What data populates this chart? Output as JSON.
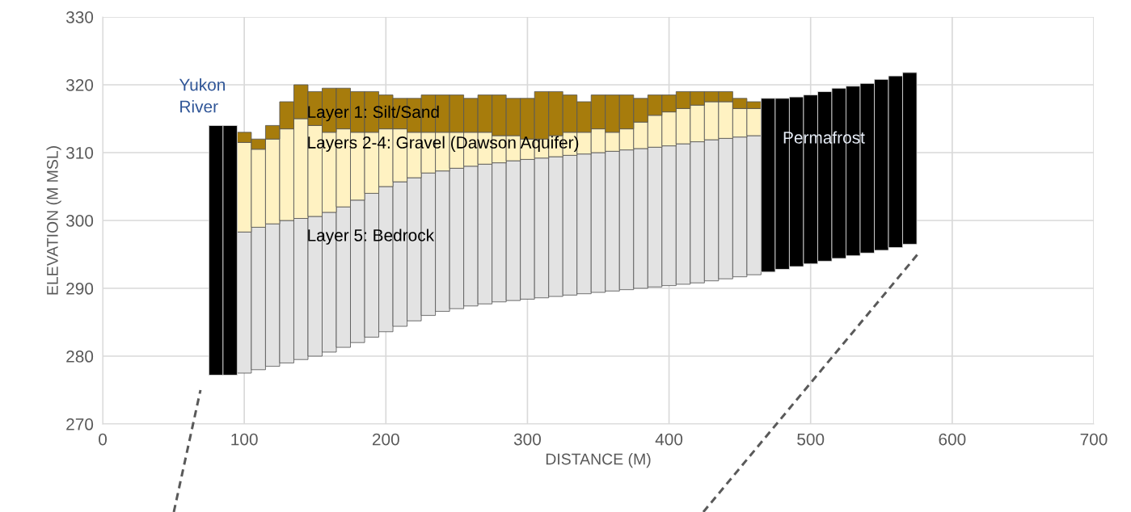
{
  "chart_data": {
    "type": "bar",
    "xlabel": "DISTANCE (M)",
    "ylabel": "ELEVATION (M MSL)",
    "x": [
      80,
      90,
      100,
      110,
      120,
      130,
      140,
      150,
      160,
      170,
      180,
      190,
      200,
      210,
      220,
      230,
      240,
      250,
      260,
      270,
      280,
      290,
      300,
      310,
      320,
      330,
      340,
      350,
      360,
      370,
      380,
      390,
      400,
      410,
      420,
      430,
      440,
      450,
      460,
      470,
      480,
      490,
      500,
      510,
      520,
      530,
      540,
      550,
      560,
      570
    ],
    "series": [
      {
        "color": "#e3e3e3",
        "base": [
          null,
          null,
          277.5,
          278,
          278.5,
          279,
          279.5,
          280,
          280.6,
          281.3,
          282,
          282.8,
          283.6,
          284.4,
          285.2,
          286,
          286.6,
          287,
          287.4,
          287.7,
          288,
          288.2,
          288.4,
          288.6,
          288.8,
          289,
          289.2,
          289.4,
          289.6,
          289.8,
          290,
          290.2,
          290.4,
          290.6,
          290.8,
          291.1,
          291.4,
          291.7,
          292,
          null,
          null,
          null,
          null,
          null,
          null,
          null,
          null,
          null,
          null,
          null
        ],
        "values": [
          null,
          null,
          20.8,
          21.0,
          21.0,
          21.0,
          20.8,
          20.6,
          20.6,
          20.7,
          21.0,
          21.2,
          21.4,
          21.3,
          21.1,
          21.0,
          20.7,
          20.7,
          20.6,
          20.6,
          20.5,
          20.6,
          20.6,
          20.6,
          20.6,
          20.6,
          20.6,
          20.6,
          20.6,
          20.6,
          20.6,
          20.6,
          20.6,
          20.7,
          20.8,
          20.8,
          20.7,
          20.6,
          20.5,
          null,
          null,
          null,
          null,
          null,
          null,
          null,
          null,
          null,
          null,
          null
        ]
      },
      {
        "color": "#fff2c2",
        "base": [
          null,
          null,
          298.3,
          299,
          299.5,
          300,
          300.3,
          300.6,
          301.2,
          302,
          303,
          304,
          305,
          305.7,
          306.3,
          307,
          307.3,
          307.7,
          308,
          308.3,
          308.5,
          308.8,
          309,
          309.2,
          309.4,
          309.6,
          309.8,
          310,
          310.2,
          310.4,
          310.6,
          310.8,
          311,
          311.3,
          311.6,
          311.9,
          312.1,
          312.3,
          312.5,
          null,
          null,
          null,
          null,
          null,
          null,
          null,
          null,
          null,
          null,
          null
        ],
        "values": [
          null,
          null,
          13.2,
          11.5,
          12.5,
          13.5,
          14.7,
          13.4,
          11.8,
          11.5,
          10.0,
          9.0,
          8.5,
          7.8,
          6.7,
          6.0,
          5.7,
          5.3,
          5.0,
          4.7,
          4.0,
          3.7,
          3.0,
          2.8,
          3.1,
          3.4,
          3.2,
          3.5,
          2.8,
          3.1,
          3.9,
          4.7,
          5.0,
          5.2,
          5.4,
          5.6,
          5.4,
          4.2,
          4.0,
          null,
          null,
          null,
          null,
          null,
          null,
          null,
          null,
          null,
          null,
          null
        ]
      },
      {
        "color": "#a77c0c",
        "base": [
          null,
          null,
          311.5,
          310.5,
          312,
          313.5,
          315,
          314,
          313,
          313.5,
          313,
          313,
          313.5,
          313.5,
          313,
          313,
          313,
          313,
          313,
          313,
          312.5,
          312.5,
          312,
          312,
          312.5,
          313,
          313,
          313.5,
          313,
          313.5,
          314.5,
          315.5,
          316,
          316.5,
          317,
          317.5,
          317.5,
          316.5,
          316.5,
          null,
          null,
          null,
          null,
          null,
          null,
          null,
          null,
          null,
          null,
          null
        ],
        "values": [
          null,
          null,
          1.5,
          1.5,
          2.0,
          4.0,
          5.0,
          5.0,
          6.5,
          6.0,
          6.0,
          6.0,
          5.0,
          4.5,
          5.0,
          5.5,
          5.5,
          5.5,
          5.0,
          5.5,
          6.0,
          5.5,
          6.0,
          7.0,
          6.5,
          5.5,
          4.5,
          5.0,
          5.5,
          5.0,
          3.5,
          3.0,
          2.5,
          2.5,
          2.0,
          1.5,
          1.5,
          1.5,
          1.0,
          null,
          null,
          null,
          null,
          null,
          null,
          null,
          null,
          null,
          null,
          null
        ]
      },
      {
        "color": "#000000",
        "base": [
          277.2,
          277.2,
          null,
          null,
          null,
          null,
          null,
          null,
          null,
          null,
          null,
          null,
          null,
          null,
          null,
          null,
          null,
          null,
          null,
          null,
          null,
          null,
          null,
          null,
          null,
          null,
          null,
          null,
          null,
          null,
          null,
          null,
          null,
          null,
          null,
          null,
          null,
          null,
          null,
          292.4,
          292.8,
          293.2,
          293.6,
          294,
          294.4,
          294.8,
          295.2,
          295.6,
          296,
          296.5
        ],
        "values": [
          36.8,
          36.8,
          null,
          null,
          null,
          null,
          null,
          null,
          null,
          null,
          null,
          null,
          null,
          null,
          null,
          null,
          null,
          null,
          null,
          null,
          null,
          null,
          null,
          null,
          null,
          null,
          null,
          null,
          null,
          null,
          null,
          null,
          null,
          null,
          null,
          null,
          null,
          null,
          null,
          25.6,
          25.2,
          25.0,
          24.9,
          25.0,
          25.1,
          25.0,
          25.0,
          25.2,
          25.3,
          25.3
        ]
      }
    ],
    "xlim": [
      0,
      700
    ],
    "xticks": [
      0,
      100,
      200,
      300,
      400,
      500,
      600,
      700
    ],
    "ylim": [
      270,
      330
    ],
    "yticks": [
      270,
      280,
      290,
      300,
      310,
      320,
      330
    ],
    "grid": true,
    "annotations": [
      "Yukon\nRiver",
      "Layer 1: Silt/Sand",
      "Layers 2-4: Gravel (Dawson Aquifer)",
      "Layer 5: Bedrock",
      "Permafrost"
    ]
  }
}
